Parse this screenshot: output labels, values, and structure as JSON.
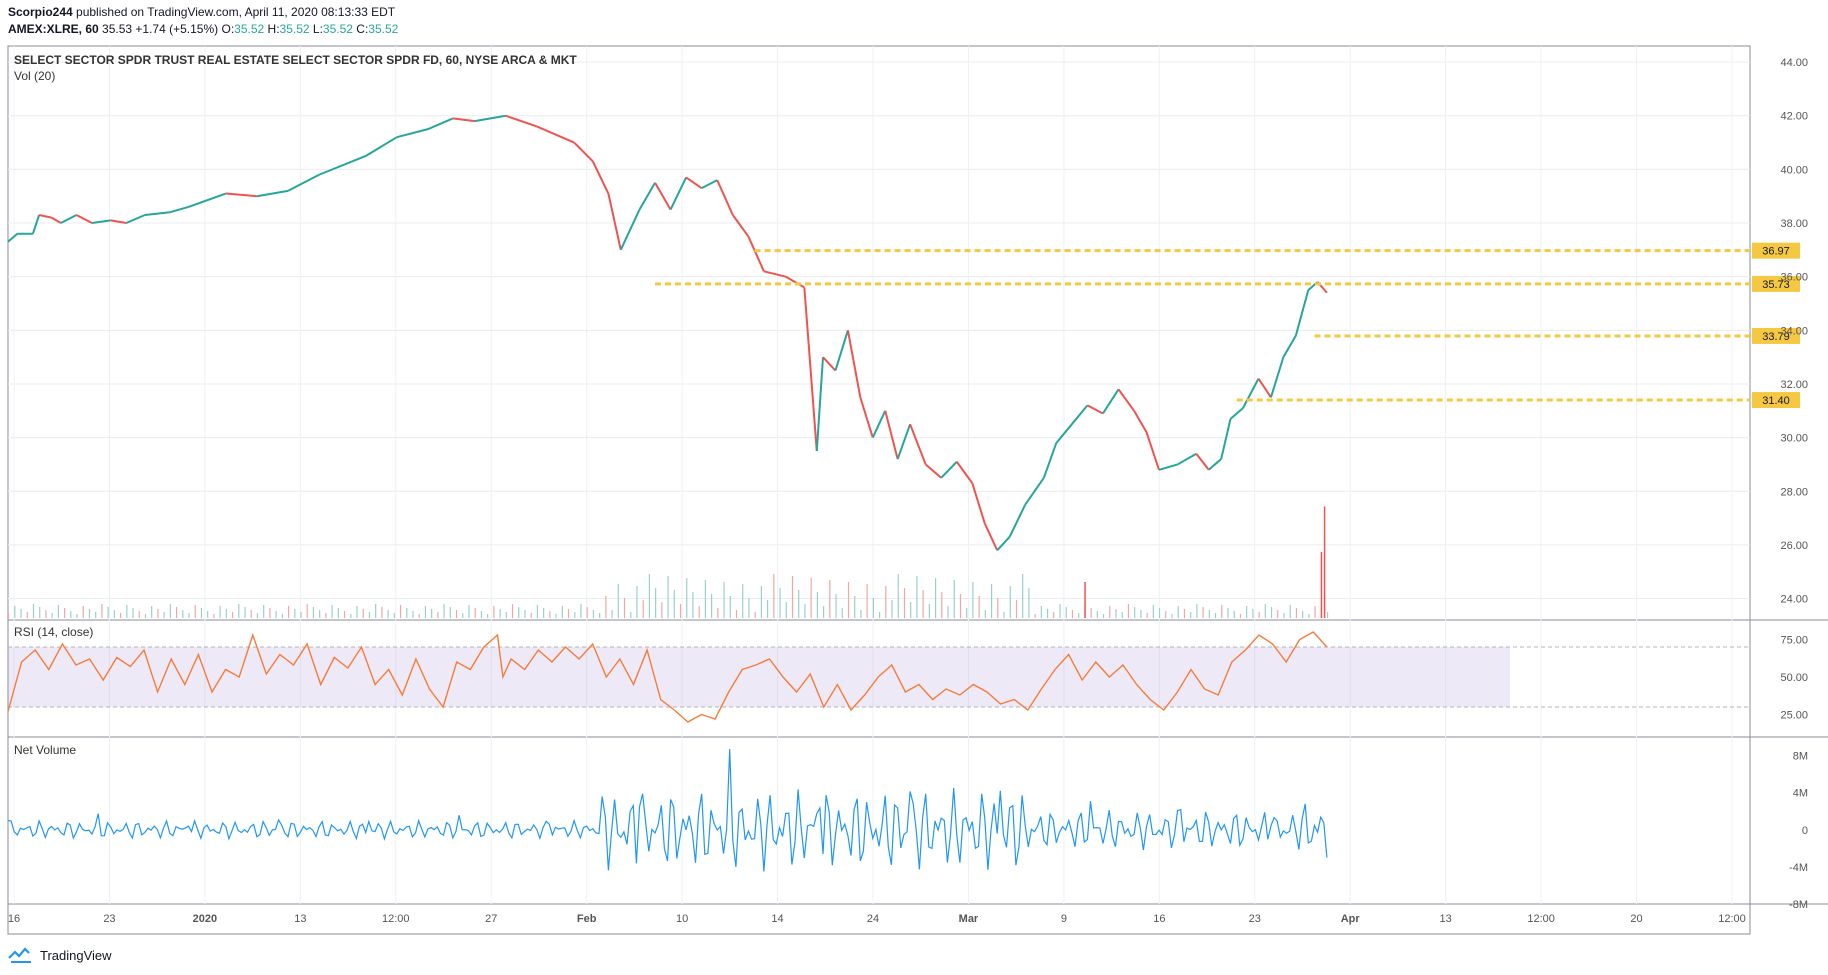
{
  "header": {
    "author": "Scorpio244",
    "published_text": " published on TradingView.com, April 11, 2020 08:13:33 EDT",
    "symbol": "AMEX:XLRE, 60",
    "last": "35.53",
    "change": "+1.74 (+5.15%)",
    "o_label": "O:",
    "o": "35.52",
    "h_label": "H:",
    "h": "35.52",
    "l_label": "L:",
    "l": "35.52",
    "c_label": "C:",
    "c": "35.52"
  },
  "chart_data": [
    {
      "type": "candlestick",
      "title": "SELECT SECTOR SPDR TRUST REAL ESTATE SELECT SECTOR SPDR FD, 60, NYSE ARCA & MKT",
      "subtitle": "Vol (20)",
      "ylim": [
        23.2,
        44.6
      ],
      "y_ticks": [
        "44.00",
        "42.00",
        "40.00",
        "38.00",
        "36.00",
        "34.00",
        "32.00",
        "30.00",
        "28.00",
        "26.00",
        "24.00"
      ],
      "x_ticks": [
        "16",
        "23",
        "2020",
        "13",
        "12:00",
        "27",
        "Feb",
        "10",
        "14",
        "24",
        "Mar",
        "9",
        "16",
        "23",
        "Apr",
        "13",
        "12:00",
        "20",
        "12:00"
      ],
      "price_path": [
        [
          0,
          37.3
        ],
        [
          3,
          37.6
        ],
        [
          8,
          37.6
        ],
        [
          10,
          38.3
        ],
        [
          14,
          38.2
        ],
        [
          17,
          38.0
        ],
        [
          22,
          38.3
        ],
        [
          27,
          38.0
        ],
        [
          33,
          38.1
        ],
        [
          38,
          38.0
        ],
        [
          44,
          38.3
        ],
        [
          52,
          38.4
        ],
        [
          58,
          38.6
        ],
        [
          70,
          39.1
        ],
        [
          80,
          39.0
        ],
        [
          90,
          39.2
        ],
        [
          100,
          39.8
        ],
        [
          115,
          40.5
        ],
        [
          125,
          41.2
        ],
        [
          135,
          41.5
        ],
        [
          143,
          41.9
        ],
        [
          150,
          41.8
        ],
        [
          160,
          42.0
        ],
        [
          170,
          41.6
        ],
        [
          182,
          41.0
        ],
        [
          188,
          40.3
        ],
        [
          193,
          39.1
        ],
        [
          197,
          37.0
        ],
        [
          203,
          38.5
        ],
        [
          208,
          39.5
        ],
        [
          213,
          38.5
        ],
        [
          218,
          39.7
        ],
        [
          223,
          39.3
        ],
        [
          228,
          39.6
        ],
        [
          233,
          38.3
        ],
        [
          238,
          37.5
        ],
        [
          243,
          36.2
        ],
        [
          250,
          36.0
        ],
        [
          256,
          35.6
        ],
        [
          260,
          29.5
        ],
        [
          262,
          33.0
        ],
        [
          266,
          32.5
        ],
        [
          270,
          34.0
        ],
        [
          274,
          31.5
        ],
        [
          278,
          30.0
        ],
        [
          282,
          31.0
        ],
        [
          286,
          29.2
        ],
        [
          290,
          30.5
        ],
        [
          295,
          29.0
        ],
        [
          300,
          28.5
        ],
        [
          305,
          29.1
        ],
        [
          310,
          28.3
        ],
        [
          314,
          26.8
        ],
        [
          318,
          25.8
        ],
        [
          322,
          26.3
        ],
        [
          327,
          27.5
        ],
        [
          333,
          28.5
        ],
        [
          337,
          29.8
        ],
        [
          342,
          30.5
        ],
        [
          347,
          31.2
        ],
        [
          352,
          30.9
        ],
        [
          357,
          31.8
        ],
        [
          362,
          31.0
        ],
        [
          366,
          30.2
        ],
        [
          370,
          28.8
        ],
        [
          376,
          29.0
        ],
        [
          382,
          29.4
        ],
        [
          386,
          28.8
        ],
        [
          390,
          29.2
        ],
        [
          393,
          30.7
        ],
        [
          397,
          31.1
        ],
        [
          402,
          32.2
        ],
        [
          406,
          31.5
        ],
        [
          410,
          33.0
        ],
        [
          414,
          33.8
        ],
        [
          418,
          35.5
        ],
        [
          421,
          35.8
        ],
        [
          424,
          35.4
        ]
      ],
      "volume_spikes": [
        [
          346,
          3.0
        ],
        [
          422,
          5.5
        ],
        [
          423,
          9.3
        ]
      ],
      "levels": [
        {
          "label": "36.97",
          "value": 36.97
        },
        {
          "label": "35.73",
          "value": 35.73
        },
        {
          "label": "33.79",
          "value": 33.79
        },
        {
          "label": "31.40",
          "value": 31.4
        }
      ],
      "line_color": "#26a69a",
      "down_color": "#ef5350",
      "level_color": "#f5c842"
    },
    {
      "type": "line",
      "title": "RSI (14, close)",
      "ylim": [
        10,
        88
      ],
      "y_ticks": [
        "75.00",
        "50.00",
        "25.00"
      ],
      "band": [
        30,
        70
      ],
      "path": [
        [
          0,
          27
        ],
        [
          5,
          60
        ],
        [
          10,
          68
        ],
        [
          15,
          55
        ],
        [
          20,
          72
        ],
        [
          25,
          58
        ],
        [
          30,
          62
        ],
        [
          35,
          48
        ],
        [
          40,
          63
        ],
        [
          45,
          57
        ],
        [
          50,
          68
        ],
        [
          55,
          40
        ],
        [
          60,
          62
        ],
        [
          65,
          45
        ],
        [
          70,
          65
        ],
        [
          75,
          40
        ],
        [
          80,
          55
        ],
        [
          85,
          50
        ],
        [
          90,
          78
        ],
        [
          95,
          52
        ],
        [
          100,
          65
        ],
        [
          105,
          58
        ],
        [
          110,
          72
        ],
        [
          115,
          45
        ],
        [
          120,
          63
        ],
        [
          125,
          56
        ],
        [
          130,
          70
        ],
        [
          135,
          45
        ],
        [
          140,
          55
        ],
        [
          145,
          38
        ],
        [
          150,
          62
        ],
        [
          155,
          42
        ],
        [
          160,
          30
        ],
        [
          165,
          60
        ],
        [
          170,
          55
        ],
        [
          175,
          70
        ],
        [
          180,
          78
        ],
        [
          182,
          50
        ],
        [
          185,
          62
        ],
        [
          190,
          55
        ],
        [
          195,
          68
        ],
        [
          200,
          60
        ],
        [
          205,
          70
        ],
        [
          210,
          62
        ],
        [
          215,
          72
        ],
        [
          220,
          50
        ],
        [
          225,
          62
        ],
        [
          230,
          45
        ],
        [
          235,
          68
        ],
        [
          240,
          35
        ],
        [
          245,
          28
        ],
        [
          250,
          20
        ],
        [
          255,
          25
        ],
        [
          260,
          22
        ],
        [
          265,
          40
        ],
        [
          270,
          55
        ],
        [
          275,
          58
        ],
        [
          280,
          62
        ],
        [
          285,
          50
        ],
        [
          290,
          40
        ],
        [
          295,
          52
        ],
        [
          300,
          30
        ],
        [
          305,
          45
        ],
        [
          310,
          28
        ],
        [
          315,
          38
        ],
        [
          320,
          50
        ],
        [
          325,
          58
        ],
        [
          330,
          40
        ],
        [
          335,
          45
        ],
        [
          340,
          35
        ],
        [
          345,
          42
        ],
        [
          350,
          38
        ],
        [
          355,
          45
        ],
        [
          360,
          40
        ],
        [
          365,
          32
        ],
        [
          370,
          35
        ],
        [
          375,
          28
        ],
        [
          380,
          42
        ],
        [
          385,
          55
        ],
        [
          390,
          65
        ],
        [
          395,
          48
        ],
        [
          400,
          60
        ],
        [
          405,
          50
        ],
        [
          410,
          58
        ],
        [
          415,
          45
        ],
        [
          420,
          35
        ],
        [
          425,
          28
        ],
        [
          430,
          40
        ],
        [
          435,
          55
        ],
        [
          440,
          42
        ],
        [
          445,
          38
        ],
        [
          450,
          60
        ],
        [
          455,
          68
        ],
        [
          460,
          78
        ],
        [
          465,
          72
        ],
        [
          470,
          60
        ],
        [
          475,
          75
        ],
        [
          480,
          80
        ],
        [
          485,
          70
        ]
      ],
      "line_color": "#f57c3a",
      "band_color": "#b39ddb"
    },
    {
      "type": "line",
      "title": "Net Volume",
      "ylim": [
        -8,
        10
      ],
      "y_ticks": [
        "8M",
        "4M",
        "0",
        "-4M",
        "-8M"
      ],
      "line_color": "#2196f3"
    }
  ],
  "footer": {
    "brand": "TradingView"
  }
}
